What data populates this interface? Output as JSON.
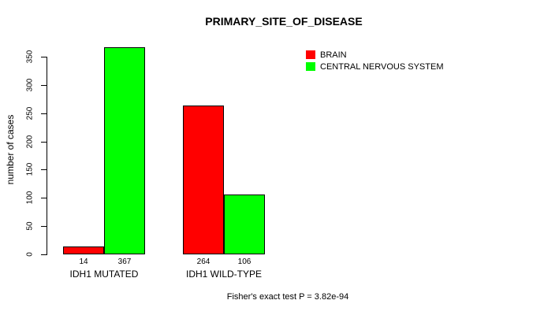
{
  "chart_data": {
    "type": "bar",
    "title": "PRIMARY_SITE_OF_DISEASE",
    "xlabel": "",
    "ylabel": "number of cases",
    "ylim": [
      0,
      350
    ],
    "yticks": [
      0,
      50,
      100,
      150,
      200,
      250,
      300,
      350
    ],
    "grid": false,
    "legend_position": "top-right",
    "categories": [
      "IDH1 MUTATED",
      "IDH1 WILD-TYPE"
    ],
    "series": [
      {
        "name": "BRAIN",
        "color": "#ff0000",
        "values": [
          14,
          264
        ]
      },
      {
        "name": "CENTRAL NERVOUS SYSTEM",
        "color": "#00ff00",
        "values": [
          367,
          106
        ]
      }
    ],
    "bar_value_labels": [
      [
        14,
        367
      ],
      [
        264,
        106
      ]
    ],
    "annotation": "Fisher's exact test P = 3.82e-94"
  },
  "colors": {
    "axis": "#000000",
    "background": "#ffffff",
    "brain": "#ff0000",
    "central_nervous_system": "#00ff00"
  }
}
